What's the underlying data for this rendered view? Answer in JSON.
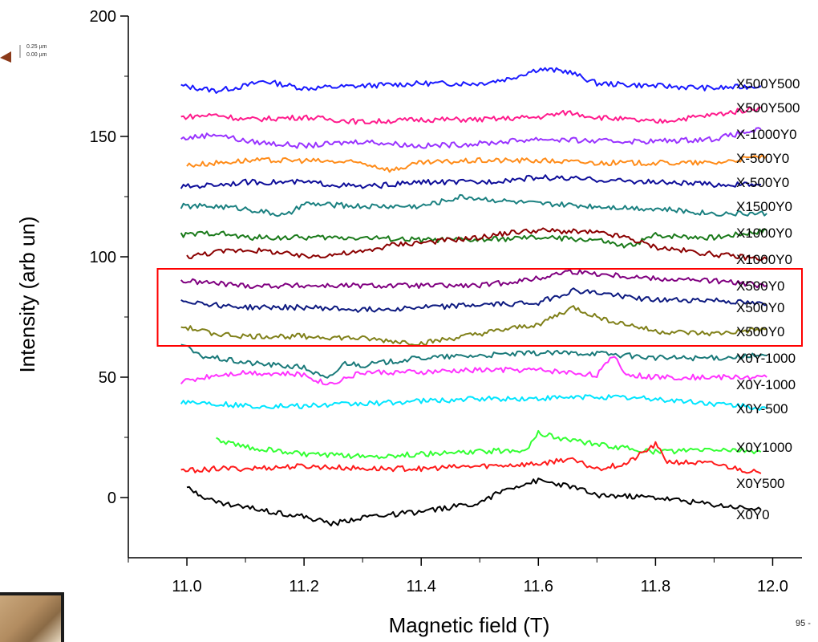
{
  "page_number": "95 -",
  "afm_scale": {
    "top": "0.25 µm",
    "bottom": "0.00 µm"
  },
  "colors": {
    "highlight_box": "#ff0000",
    "axis": "#000000"
  },
  "chart_data": {
    "type": "line",
    "xlabel": "Magnetic field (T)",
    "ylabel": "Intensity (arb un)",
    "xlim": [
      10.9,
      12.05
    ],
    "ylim": [
      -25,
      200
    ],
    "xticks": [
      "11.0",
      "11.2",
      "11.4",
      "11.6",
      "11.8",
      "12.0"
    ],
    "xtick_values": [
      11.0,
      11.2,
      11.4,
      11.6,
      11.8,
      12.0
    ],
    "yticks": [
      "0",
      "50",
      "100",
      "150",
      "200"
    ],
    "ytick_values": [
      0,
      50,
      100,
      150,
      200
    ],
    "highlight_region": {
      "x": [
        10.95,
        12.05
      ],
      "y": [
        63,
        95
      ]
    },
    "series": [
      {
        "name": "X500Y500",
        "color": "#1a1aff",
        "x": [
          10.99,
          11.05,
          11.1,
          11.13,
          11.2,
          11.3,
          11.4,
          11.5,
          11.55,
          11.6,
          11.65,
          11.7,
          11.8,
          11.9,
          11.98
        ],
        "y": [
          171,
          169,
          171,
          173,
          170,
          171,
          172,
          172,
          174,
          178,
          177,
          172,
          171,
          170,
          171
        ]
      },
      {
        "name": "X500Y500",
        "color": "#ff1a8c",
        "x": [
          10.99,
          11.05,
          11.1,
          11.2,
          11.3,
          11.4,
          11.5,
          11.6,
          11.65,
          11.7,
          11.8,
          11.9,
          11.98
        ],
        "y": [
          158,
          159,
          157,
          158,
          156,
          157,
          157,
          158,
          160,
          158,
          156,
          159,
          162
        ]
      },
      {
        "name": "X-1000Y0",
        "color": "#9933ff",
        "x": [
          10.99,
          11.05,
          11.1,
          11.2,
          11.3,
          11.4,
          11.5,
          11.6,
          11.7,
          11.8,
          11.9,
          11.98
        ],
        "y": [
          149,
          151,
          148,
          146,
          148,
          146,
          147,
          149,
          148,
          148,
          149,
          153
        ]
      },
      {
        "name": "X-500Y0",
        "color": "#ff8c1a",
        "x": [
          11.0,
          11.05,
          11.1,
          11.2,
          11.3,
          11.35,
          11.4,
          11.5,
          11.6,
          11.7,
          11.8,
          11.9,
          11.99
        ],
        "y": [
          138,
          139,
          140,
          140,
          139,
          136,
          139,
          140,
          140,
          139,
          139,
          139,
          142
        ]
      },
      {
        "name": "X-500Y0",
        "color": "#0d0d99",
        "x": [
          10.99,
          11.05,
          11.1,
          11.2,
          11.3,
          11.4,
          11.5,
          11.6,
          11.7,
          11.8,
          11.9,
          11.98
        ],
        "y": [
          129,
          130,
          131,
          131,
          129,
          131,
          131,
          133,
          132,
          131,
          130,
          130
        ]
      },
      {
        "name": "X1500Y0",
        "color": "#1a8080",
        "x": [
          10.99,
          11.05,
          11.1,
          11.17,
          11.2,
          11.3,
          11.4,
          11.47,
          11.55,
          11.6,
          11.7,
          11.8,
          11.9,
          11.99
        ],
        "y": [
          121,
          121,
          120,
          117,
          122,
          121,
          121,
          125,
          123,
          122,
          121,
          120,
          118,
          118
        ]
      },
      {
        "name": "X1000Y0",
        "color": "#1a7a1a",
        "x": [
          10.99,
          11.05,
          11.1,
          11.2,
          11.3,
          11.4,
          11.5,
          11.6,
          11.7,
          11.75,
          11.8,
          11.9,
          11.99
        ],
        "y": [
          109,
          110,
          108,
          108,
          108,
          107,
          107,
          108,
          107,
          104,
          109,
          108,
          111
        ]
      },
      {
        "name": "X1000Y0",
        "color": "#8b0000",
        "x": [
          11.0,
          11.05,
          11.1,
          11.15,
          11.2,
          11.3,
          11.35,
          11.4,
          11.5,
          11.55,
          11.6,
          11.7,
          11.75,
          11.8,
          11.9,
          11.99
        ],
        "y": [
          100,
          102,
          103,
          102,
          100,
          102,
          105,
          106,
          108,
          110,
          111,
          110,
          108,
          104,
          101,
          99
        ]
      },
      {
        "name": "X500Y0",
        "color": "#800080",
        "x": [
          10.99,
          11.05,
          11.1,
          11.2,
          11.3,
          11.4,
          11.5,
          11.6,
          11.65,
          11.7,
          11.8,
          11.9,
          11.99
        ],
        "y": [
          90,
          89,
          88,
          88,
          88,
          88,
          88,
          91,
          94,
          93,
          91,
          90,
          88
        ]
      },
      {
        "name": "X500Y0",
        "color": "#0d1a80",
        "x": [
          10.99,
          11.05,
          11.1,
          11.2,
          11.3,
          11.4,
          11.5,
          11.6,
          11.66,
          11.7,
          11.8,
          11.9,
          11.99
        ],
        "y": [
          82,
          80,
          79,
          79,
          78,
          79,
          80,
          81,
          86,
          85,
          82,
          82,
          80
        ]
      },
      {
        "name": "X500Y0",
        "color": "#808019",
        "x": [
          10.99,
          11.05,
          11.1,
          11.2,
          11.3,
          11.4,
          11.5,
          11.6,
          11.66,
          11.7,
          11.8,
          11.9,
          11.99
        ],
        "y": [
          71,
          68,
          67,
          67,
          66,
          64,
          68,
          72,
          79,
          75,
          69,
          68,
          70
        ]
      },
      {
        "name": "X0Y-1000",
        "color": "#1a7a7a",
        "x": [
          10.99,
          11.02,
          11.1,
          11.2,
          11.24,
          11.27,
          11.3,
          11.4,
          11.5,
          11.6,
          11.7,
          11.8,
          11.9,
          11.99
        ],
        "y": [
          64,
          59,
          56,
          54,
          49,
          56,
          55,
          58,
          59,
          60,
          60,
          58,
          58,
          59
        ]
      },
      {
        "name": "X0Y-1000",
        "color": "#ff33ff",
        "x": [
          10.99,
          11.05,
          11.1,
          11.2,
          11.24,
          11.3,
          11.4,
          11.5,
          11.6,
          11.7,
          11.73,
          11.75,
          11.8,
          11.9,
          11.99
        ],
        "y": [
          48,
          51,
          52,
          51,
          47,
          52,
          52,
          53,
          53,
          51,
          59,
          51,
          50,
          50,
          50
        ]
      },
      {
        "name": "X0Y-500",
        "color": "#00e5ff",
        "x": [
          10.99,
          11.05,
          11.1,
          11.2,
          11.3,
          11.4,
          11.5,
          11.6,
          11.7,
          11.8,
          11.9,
          11.99
        ],
        "y": [
          40,
          39,
          38,
          38,
          39,
          40,
          41,
          41,
          42,
          41,
          39,
          37
        ]
      },
      {
        "name": "X0Y1000",
        "color": "#33ff33",
        "x": [
          11.05,
          11.1,
          11.2,
          11.3,
          11.4,
          11.5,
          11.58,
          11.6,
          11.63,
          11.7,
          11.8,
          11.9,
          11.98
        ],
        "y": [
          24,
          21,
          18,
          17,
          18,
          19,
          20,
          27,
          25,
          22,
          19,
          20,
          19
        ]
      },
      {
        "name": "X0Y500",
        "color": "#ff1a1a",
        "x": [
          10.99,
          11.05,
          11.1,
          11.2,
          11.3,
          11.4,
          11.5,
          11.6,
          11.65,
          11.7,
          11.75,
          11.8,
          11.82,
          11.9,
          11.98
        ],
        "y": [
          11,
          12,
          12,
          13,
          12,
          12,
          13,
          14,
          16,
          12,
          14,
          22,
          15,
          14,
          10
        ]
      },
      {
        "name": "X0Y0",
        "color": "#000000",
        "x": [
          11.0,
          11.05,
          11.1,
          11.2,
          11.25,
          11.3,
          11.4,
          11.5,
          11.55,
          11.6,
          11.65,
          11.7,
          11.8,
          11.9,
          11.98
        ],
        "y": [
          4,
          -2,
          -4,
          -8,
          -11,
          -8,
          -6,
          -2,
          4,
          7,
          5,
          1,
          0,
          -3,
          -5
        ]
      }
    ],
    "series_label_positions_y": [
      172,
      162,
      151,
      141,
      131,
      121,
      110,
      99,
      88,
      79,
      69,
      58,
      47,
      37,
      21,
      6,
      -7
    ]
  }
}
